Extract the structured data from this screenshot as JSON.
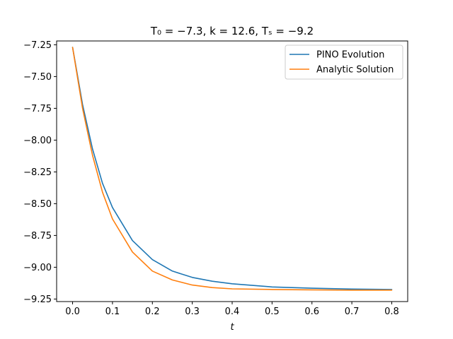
{
  "chart_data": {
    "type": "line",
    "title": "T₀ = −7.3,  k = 12.6,  Tₛ = −9.2",
    "xlabel": "t",
    "ylabel": "",
    "xlim": [
      -0.04,
      0.84
    ],
    "ylim": [
      -9.27,
      -7.22
    ],
    "xticks": [
      0.0,
      0.1,
      0.2,
      0.3,
      0.4,
      0.5,
      0.6,
      0.7,
      0.8
    ],
    "xtick_labels": [
      "0.0",
      "0.1",
      "0.2",
      "0.3",
      "0.4",
      "0.5",
      "0.6",
      "0.7",
      "0.8"
    ],
    "yticks": [
      -7.25,
      -7.5,
      -7.75,
      -8.0,
      -8.25,
      -8.5,
      -8.75,
      -9.0,
      -9.25
    ],
    "ytick_labels": [
      "−7.25",
      "−7.50",
      "−7.75",
      "−8.00",
      "−8.25",
      "−8.50",
      "−8.75",
      "−9.00",
      "−9.25"
    ],
    "grid": false,
    "legend_position": "top-right",
    "series": [
      {
        "name": "PINO Evolution",
        "color": "#1f77b4",
        "x": [
          0.0,
          0.025,
          0.05,
          0.075,
          0.1,
          0.15,
          0.2,
          0.25,
          0.3,
          0.35,
          0.4,
          0.5,
          0.6,
          0.7,
          0.8
        ],
        "y": [
          -7.27,
          -7.72,
          -8.07,
          -8.34,
          -8.53,
          -8.79,
          -8.94,
          -9.03,
          -9.08,
          -9.11,
          -9.13,
          -9.155,
          -9.165,
          -9.172,
          -9.175
        ]
      },
      {
        "name": "Analytic Solution",
        "color": "#ff7f0e",
        "x": [
          0.0,
          0.025,
          0.05,
          0.075,
          0.1,
          0.15,
          0.2,
          0.25,
          0.3,
          0.35,
          0.4,
          0.5,
          0.6,
          0.7,
          0.8
        ],
        "y": [
          -7.27,
          -7.75,
          -8.12,
          -8.41,
          -8.62,
          -8.88,
          -9.03,
          -9.1,
          -9.14,
          -9.16,
          -9.17,
          -9.175,
          -9.178,
          -9.18,
          -9.18
        ]
      }
    ]
  }
}
